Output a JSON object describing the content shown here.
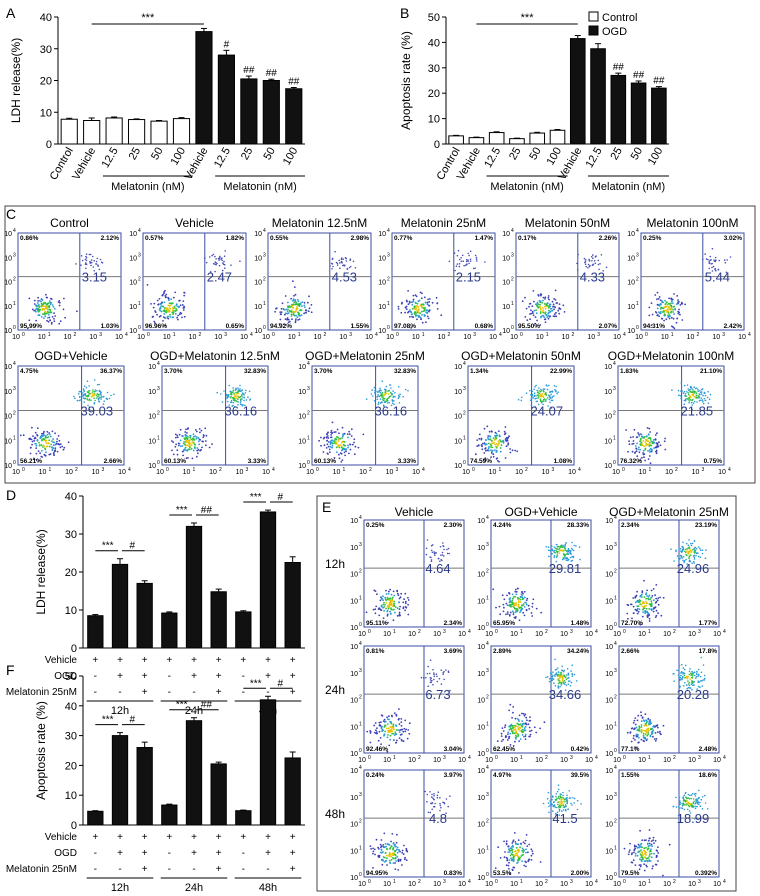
{
  "panel_letters": [
    "A",
    "B",
    "C",
    "D",
    "E",
    "F"
  ],
  "chart_data": [
    {
      "panel": "A",
      "type": "bar",
      "ylabel": "LDH release(%)",
      "ylim": [
        0,
        40
      ],
      "yticks": [
        0,
        10,
        20,
        30,
        40
      ],
      "categories": [
        "Control",
        "Vehicle",
        "12.5",
        "25",
        "50",
        "100",
        "Vehicle",
        "12.5",
        "25",
        "50",
        "100"
      ],
      "values": [
        7.8,
        7.4,
        8.2,
        7.7,
        7.2,
        8.0,
        35.4,
        28.0,
        20.5,
        20.0,
        17.4
      ],
      "errors": [
        0.3,
        0.8,
        0.3,
        0.2,
        0.2,
        0.3,
        1.0,
        1.5,
        0.9,
        0.4,
        0.4
      ],
      "groups": [
        "Control",
        "Control",
        "Control",
        "Control",
        "Control",
        "Control",
        "OGD",
        "OGD",
        "OGD",
        "OGD",
        "OGD"
      ],
      "marks": [
        "",
        "",
        "",
        "",
        "",
        "",
        "",
        "#",
        "##",
        "##",
        "##"
      ],
      "sig_label": "***",
      "group_labels": [
        "Melatonin (nM)",
        "Melatonin (nM)"
      ]
    },
    {
      "panel": "B",
      "type": "bar",
      "ylabel": "Apoptosis rate (%)",
      "ylim": [
        0,
        50
      ],
      "yticks": [
        0,
        10,
        20,
        30,
        40,
        50
      ],
      "categories": [
        "Control",
        "Vehicle",
        "12.5",
        "25",
        "50",
        "100",
        "Vehicle",
        "12.5",
        "25",
        "50",
        "100"
      ],
      "values": [
        3.2,
        2.5,
        4.5,
        2.1,
        4.3,
        5.4,
        41.5,
        37.5,
        27.0,
        24.0,
        22.0
      ],
      "errors": [
        0.2,
        0.2,
        0.3,
        0.2,
        0.3,
        0.3,
        1.2,
        2.0,
        0.9,
        0.8,
        0.6
      ],
      "groups": [
        "Control",
        "Control",
        "Control",
        "Control",
        "Control",
        "Control",
        "OGD",
        "OGD",
        "OGD",
        "OGD",
        "OGD"
      ],
      "marks": [
        "",
        "",
        "",
        "",
        "",
        "",
        "",
        "",
        "##",
        "##",
        "##"
      ],
      "sig_label": "***",
      "legend": [
        "Control",
        "OGD"
      ],
      "group_labels": [
        "Melatonin (nM)",
        "Melatonin (nM)"
      ]
    },
    {
      "panel": "D",
      "type": "bar",
      "ylabel": "LDH release(%)",
      "ylim": [
        0,
        40
      ],
      "yticks": [
        0,
        10,
        20,
        30,
        40
      ],
      "values": [
        8.5,
        22.0,
        17.0,
        9.2,
        32.0,
        14.8,
        9.5,
        35.8,
        22.5
      ],
      "errors": [
        0.3,
        1.5,
        0.7,
        0.3,
        0.9,
        0.7,
        0.3,
        0.5,
        1.5
      ],
      "time_groups": [
        "12h",
        "24h",
        "48h"
      ],
      "row_labels": [
        "Vehicle",
        "OGD",
        "Melatonin 25nM"
      ],
      "row_values": [
        [
          "+",
          "+",
          "+",
          "+",
          "+",
          "+",
          "+",
          "+",
          "+"
        ],
        [
          "-",
          "+",
          "+",
          "-",
          "+",
          "+",
          "-",
          "+",
          "+"
        ],
        [
          "-",
          "-",
          "+",
          "-",
          "-",
          "+",
          "-",
          "-",
          "+"
        ]
      ],
      "sig": [
        [
          "***",
          "#"
        ],
        [
          "***",
          "##"
        ],
        [
          "***",
          "#"
        ]
      ]
    },
    {
      "panel": "F",
      "type": "bar",
      "ylabel": "Apoptosis rate (%)",
      "ylim": [
        0,
        50
      ],
      "yticks": [
        0,
        10,
        20,
        30,
        40,
        50
      ],
      "values": [
        4.6,
        30.0,
        26.0,
        6.7,
        35.0,
        20.5,
        4.8,
        42.0,
        22.5
      ],
      "errors": [
        0.2,
        1.0,
        1.8,
        0.3,
        1.0,
        0.6,
        0.2,
        1.2,
        2.0
      ],
      "time_groups": [
        "12h",
        "24h",
        "48h"
      ],
      "row_labels": [
        "Vehicle",
        "OGD",
        "Melatonin 25nM"
      ],
      "row_values": [
        [
          "+",
          "+",
          "+",
          "+",
          "+",
          "+",
          "+",
          "+",
          "+"
        ],
        [
          "-",
          "+",
          "+",
          "-",
          "+",
          "+",
          "-",
          "+",
          "+"
        ],
        [
          "-",
          "-",
          "+",
          "-",
          "-",
          "+",
          "-",
          "-",
          "+"
        ]
      ],
      "sig": [
        [
          "***",
          "#"
        ],
        [
          "***",
          "##"
        ],
        [
          "***",
          "#"
        ]
      ]
    },
    {
      "panel": "C",
      "type": "scatter",
      "plots": [
        {
          "title": "Control",
          "value": "3.15",
          "tl": "0.86%",
          "tr": "2.12%",
          "bl": "95.99%",
          "br": "1.03%"
        },
        {
          "title": "Vehicle",
          "value": "2.47",
          "tl": "0.57%",
          "tr": "1.82%",
          "bl": "96.96%",
          "br": "0.65%"
        },
        {
          "title": "Melatonin 12.5nM",
          "value": "4.53",
          "tl": "0.55%",
          "tr": "2.98%",
          "bl": "94.92%",
          "br": "1.55%"
        },
        {
          "title": "Melatonin 25nM",
          "value": "2.15",
          "tl": "0.77%",
          "tr": "1.47%",
          "bl": "97.08%",
          "br": "0.68%"
        },
        {
          "title": "Melatonin 50nM",
          "value": "4.33",
          "tl": "0.17%",
          "tr": "2.26%",
          "bl": "95.50%",
          "br": "2.07%"
        },
        {
          "title": "Melatonin 100nM",
          "value": "5.44",
          "tl": "0.25%",
          "tr": "3.02%",
          "bl": "94.31%",
          "br": "2.42%"
        },
        {
          "title": "OGD+Vehicle",
          "value": "39.03",
          "tl": "4.75%",
          "tr": "36.37%",
          "bl": "56.21%",
          "br": "2.66%"
        },
        {
          "title": "OGD+Melatonin 12.5nM",
          "value": "36.16",
          "tl": "3.70%",
          "tr": "32.83%",
          "bl": "60.13%",
          "br": "3.33%"
        },
        {
          "title": "OGD+Melatonin 25nM",
          "value": "36.16",
          "tl": "3.70%",
          "tr": "32.83%",
          "bl": "60.13%",
          "br": "3.33%"
        },
        {
          "title": "OGD+Melatonin 50nM",
          "value": "24.07",
          "tl": "1.34%",
          "tr": "22.99%",
          "bl": "74.59%",
          "br": "1.08%"
        },
        {
          "title": "OGD+Melatonin 100nM",
          "value": "21.85",
          "tl": "1.83%",
          "tr": "21.10%",
          "bl": "76.32%",
          "br": "0.75%"
        }
      ]
    },
    {
      "panel": "E",
      "type": "scatter",
      "column_titles": [
        "Vehicle",
        "OGD+Vehicle",
        "OGD+Melatonin 25nM"
      ],
      "row_titles": [
        "12h",
        "24h",
        "48h"
      ],
      "plots": [
        {
          "value": "4.64",
          "tl": "0.25%",
          "tr": "2.30%",
          "bl": "95.11%",
          "br": "2.34%"
        },
        {
          "value": "29.81",
          "tl": "4.24%",
          "tr": "28.33%",
          "bl": "65.95%",
          "br": "1.48%"
        },
        {
          "value": "24.96",
          "tl": "2.34%",
          "tr": "23.19%",
          "bl": "72.70%",
          "br": "1.77%"
        },
        {
          "value": "6.73",
          "tl": "0.81%",
          "tr": "3.69%",
          "bl": "92.46%",
          "br": "3.04%"
        },
        {
          "value": "34.66",
          "tl": "2.89%",
          "tr": "34.24%",
          "bl": "62.45%",
          "br": "0.42%"
        },
        {
          "value": "20.28",
          "tl": "2.66%",
          "tr": "17.8%",
          "bl": "77.1%",
          "br": "2.48%"
        },
        {
          "value": "4.8",
          "tl": "0.24%",
          "tr": "3.97%",
          "bl": "94.95%",
          "br": "0.83%"
        },
        {
          "value": "41.5",
          "tl": "4.97%",
          "tr": "39.5%",
          "bl": "53.5%",
          "br": "2.00%"
        },
        {
          "value": "18.99",
          "tl": "1.55%",
          "tr": "18.6%",
          "bl": "79.5%",
          "br": "0.392%"
        }
      ]
    }
  ],
  "flow_axis": {
    "y_ticks": [
      "10",
      "10",
      "10",
      "10",
      "10"
    ],
    "y_exps": [
      "0",
      "1",
      "2",
      "3",
      "4"
    ],
    "x_ticks": [
      "10",
      "10",
      "10",
      "10",
      "10"
    ],
    "x_exps": [
      "0",
      "1",
      "2",
      "3",
      "4"
    ]
  }
}
